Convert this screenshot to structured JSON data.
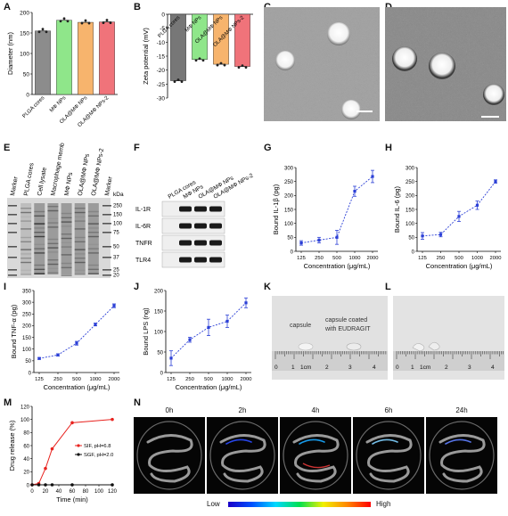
{
  "labels": [
    "A",
    "B",
    "C",
    "D",
    "E",
    "F",
    "G",
    "H",
    "I",
    "J",
    "K",
    "L",
    "M",
    "N"
  ],
  "panel_A": {
    "ylabel": "Diameter (nm)",
    "yticks": [
      "0",
      "50",
      "100",
      "150",
      "200"
    ],
    "ylim": [
      0,
      200
    ],
    "categories": [
      "PLGA cores",
      "MΦ NPs",
      "OLA@MΦ NPs",
      "OLA@MΦ NPs-2"
    ],
    "values": [
      155,
      181,
      176,
      177
    ],
    "colors": [
      "#8c8c8c",
      "#8fe68a",
      "#f7b46d",
      "#f0737a"
    ]
  },
  "panel_B": {
    "ylabel": "Zeta potential (mV)",
    "yticks": [
      "0",
      "-5",
      "-10",
      "-15",
      "-20",
      "-25",
      "-30"
    ],
    "ylim": [
      -30,
      0
    ],
    "categories": [
      "PLGA cores",
      "MΦ NPs",
      "OLA@MΦ NPs",
      "OLA@MΦ NPs-2"
    ],
    "values": [
      -23.8,
      -16.2,
      -17.9,
      -18.7
    ],
    "colors": [
      "#777777",
      "#8fe68a",
      "#f7b46d",
      "#f0737a"
    ]
  },
  "panel_E": {
    "lanes": [
      "Marker",
      "PLGA cores",
      "Cell lysate",
      "Macrophage membrane",
      "MΦ NPs",
      "OLA@MΦ NPs",
      "OLA@MΦ NPs-2",
      "Marker"
    ],
    "kda_label": "kDa",
    "kda": [
      "250",
      "150",
      "100",
      "75",
      "50",
      "37",
      "25",
      "20"
    ]
  },
  "panel_F": {
    "lanes": [
      "PLGA cores",
      "MΦ NPs",
      "OLA@MΦ NPs",
      "OLA@MΦ NPs-2"
    ],
    "rows": [
      "IL-1R",
      "IL-6R",
      "TNFR",
      "TLR4"
    ]
  },
  "panel_G": {
    "ylabel": "Bound IL-1β (pg)",
    "xlabel": "Concentration (μg/mL)",
    "xticks": [
      "125",
      "250",
      "500",
      "1000",
      "2000"
    ],
    "yticks": [
      "0",
      "50",
      "100",
      "150",
      "200",
      "250",
      "300"
    ],
    "ylim": [
      0,
      300
    ],
    "values": [
      30,
      40,
      50,
      215,
      268
    ],
    "errors": [
      8,
      10,
      25,
      18,
      22
    ]
  },
  "panel_H": {
    "ylabel": "Bound IL-6 (pg)",
    "xlabel": "Concentration (μg/mL)",
    "xticks": [
      "125",
      "250",
      "500",
      "1000",
      "2000"
    ],
    "yticks": [
      "0",
      "50",
      "100",
      "150",
      "200",
      "250",
      "300"
    ],
    "ylim": [
      0,
      300
    ],
    "values": [
      55,
      60,
      125,
      165,
      250
    ],
    "errors": [
      12,
      8,
      18,
      15,
      6
    ]
  },
  "panel_I": {
    "ylabel": "Bound TNF-α (pg)",
    "xlabel": "Concentration (μg/mL)",
    "xticks": [
      "125",
      "250",
      "500",
      "1000",
      "2000"
    ],
    "yticks": [
      "0",
      "50",
      "100",
      "150",
      "200",
      "250",
      "300",
      "350"
    ],
    "ylim": [
      0,
      350
    ],
    "values": [
      60,
      75,
      125,
      205,
      285
    ],
    "errors": [
      4,
      5,
      8,
      6,
      8
    ]
  },
  "panel_J": {
    "ylabel": "Bound LPS (ng)",
    "xlabel": "Concentration (μg/mL)",
    "xticks": [
      "125",
      "250",
      "500",
      "1000",
      "2000"
    ],
    "yticks": [
      "0",
      "50",
      "100",
      "150",
      "200"
    ],
    "ylim": [
      0,
      200
    ],
    "values": [
      35,
      80,
      110,
      125,
      170
    ],
    "errors": [
      18,
      6,
      20,
      15,
      12
    ]
  },
  "panel_K": {
    "capsule": "capsule",
    "coated_line1": "capsule coated",
    "coated_line2": "with EUDRAGIT",
    "ruler": [
      "0",
      "1",
      "1cm",
      "2",
      "3",
      "4"
    ]
  },
  "panel_L": {
    "ruler": [
      "0",
      "1",
      "1cm",
      "2",
      "3",
      "4"
    ]
  },
  "panel_M": {
    "ylabel": "Drug release (%)",
    "xlabel": "Time (min)",
    "xticks": [
      "0",
      "20",
      "40",
      "60",
      "80",
      "100",
      "120"
    ],
    "yticks": [
      "0",
      "20",
      "40",
      "60",
      "80",
      "100",
      "120"
    ],
    "xlim": [
      0,
      120
    ],
    "ylim": [
      0,
      120
    ],
    "series": [
      {
        "name": "SIF, pH=6.8",
        "color": "#e8231f",
        "x": [
          0,
          10,
          20,
          30,
          60,
          120
        ],
        "y": [
          0,
          2,
          25,
          55,
          95,
          100
        ]
      },
      {
        "name": "SGF, pH=2.0",
        "color": "#111111",
        "x": [
          0,
          10,
          20,
          30,
          60,
          120
        ],
        "y": [
          0,
          0,
          0,
          0,
          0,
          0
        ]
      }
    ]
  },
  "panel_N": {
    "times": [
      "0h",
      "2h",
      "4h",
      "6h",
      "24h"
    ],
    "scale_low": "Low",
    "scale_high": "High"
  }
}
